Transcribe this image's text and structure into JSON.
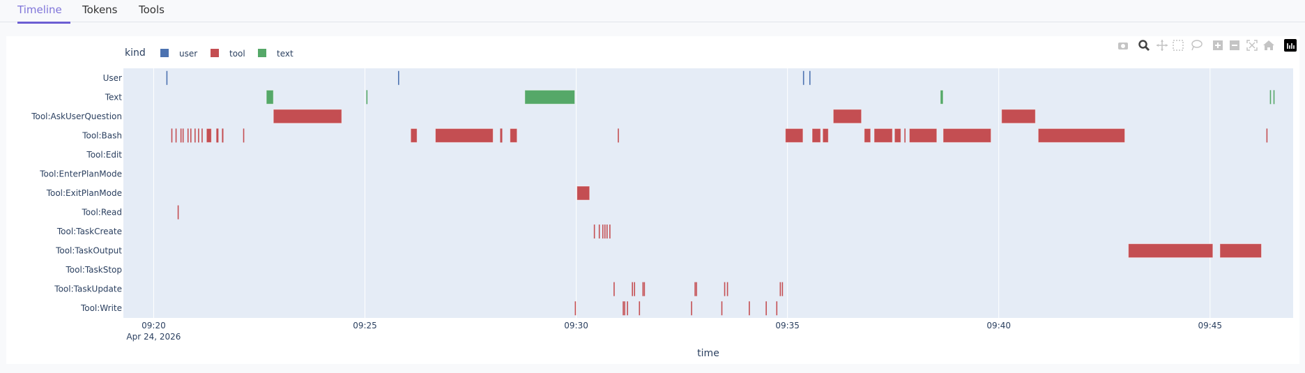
{
  "tabs": [
    {
      "label": "Timeline",
      "active": true
    },
    {
      "label": "Tokens",
      "active": false
    },
    {
      "label": "Tools",
      "active": false
    }
  ],
  "modebar": [
    "camera-icon",
    "zoom-icon",
    "pan-icon",
    "box-select-icon",
    "lasso-select-icon",
    "zoom-in-icon",
    "zoom-out-icon",
    "autoscale-icon",
    "reset-axes-icon",
    "plotly-logo-icon"
  ],
  "chart_data": {
    "type": "timeline",
    "xlabel": "time",
    "x_range": [
      "09:19:17",
      "09:46:58"
    ],
    "x_ticks": [
      "09:20",
      "09:25",
      "09:30",
      "09:35",
      "09:40",
      "09:45"
    ],
    "x_date_label": "Apr 24, 2026",
    "grid": true,
    "legend": {
      "title": "kind",
      "placement": "top-left",
      "items": [
        {
          "name": "user",
          "color": "#4c72b0"
        },
        {
          "name": "tool",
          "color": "#c44e52"
        },
        {
          "name": "text",
          "color": "#55a868"
        }
      ]
    },
    "rows": [
      "User",
      "Text",
      "Tool:AskUserQuestion",
      "Tool:Bash",
      "Tool:Edit",
      "Tool:EnterPlanMode",
      "Tool:ExitPlanMode",
      "Tool:Read",
      "Tool:TaskCreate",
      "Tool:TaskOutput",
      "Tool:TaskStop",
      "Tool:TaskUpdate",
      "Tool:Write"
    ],
    "segments": [
      {
        "row": "User",
        "kind": "user",
        "spans": [
          [
            "09:20:18",
            "09:20:19"
          ],
          [
            "09:25:47",
            "09:25:48"
          ],
          [
            "09:35:22",
            "09:35:23"
          ],
          [
            "09:35:31",
            "09:35:32"
          ]
        ]
      },
      {
        "row": "Text",
        "kind": "text",
        "spans": [
          [
            "09:22:40",
            "09:22:50"
          ],
          [
            "09:25:02",
            "09:25:03"
          ],
          [
            "09:28:47",
            "09:29:58"
          ],
          [
            "09:38:37",
            "09:38:41"
          ],
          [
            "09:46:25",
            "09:46:26"
          ],
          [
            "09:46:30",
            "09:46:31"
          ]
        ]
      },
      {
        "row": "Tool:AskUserQuestion",
        "kind": "tool",
        "spans": [
          [
            "09:22:50",
            "09:24:27"
          ],
          [
            "09:36:05",
            "09:36:45"
          ],
          [
            "09:40:04",
            "09:40:52"
          ]
        ]
      },
      {
        "row": "Tool:Bash",
        "kind": "tool",
        "spans": [
          [
            "09:20:25",
            "09:20:26"
          ],
          [
            "09:20:31",
            "09:20:32"
          ],
          [
            "09:20:38",
            "09:20:39"
          ],
          [
            "09:20:41",
            "09:20:42"
          ],
          [
            "09:20:48",
            "09:20:49"
          ],
          [
            "09:20:52",
            "09:20:53"
          ],
          [
            "09:20:58",
            "09:20:59"
          ],
          [
            "09:21:03",
            "09:21:04"
          ],
          [
            "09:21:08",
            "09:21:09"
          ],
          [
            "09:21:15",
            "09:21:22"
          ],
          [
            "09:21:29",
            "09:21:32"
          ],
          [
            "09:21:37",
            "09:21:39"
          ],
          [
            "09:22:07",
            "09:22:08"
          ],
          [
            "09:26:05",
            "09:26:14"
          ],
          [
            "09:26:40",
            "09:28:02"
          ],
          [
            "09:28:12",
            "09:28:15"
          ],
          [
            "09:28:26",
            "09:28:36"
          ],
          [
            "09:30:59",
            "09:31:00"
          ],
          [
            "09:34:57",
            "09:35:22"
          ],
          [
            "09:35:35",
            "09:35:47"
          ],
          [
            "09:35:50",
            "09:35:58"
          ],
          [
            "09:36:49",
            "09:36:58"
          ],
          [
            "09:37:03",
            "09:37:29"
          ],
          [
            "09:37:32",
            "09:37:41"
          ],
          [
            "09:37:46",
            "09:37:47"
          ],
          [
            "09:37:53",
            "09:38:32"
          ],
          [
            "09:38:41",
            "09:39:49"
          ],
          [
            "09:40:56",
            "09:42:59"
          ],
          [
            "09:46:20",
            "09:46:21"
          ]
        ]
      },
      {
        "row": "Tool:ExitPlanMode",
        "kind": "tool",
        "spans": [
          [
            "09:30:01",
            "09:30:19"
          ]
        ]
      },
      {
        "row": "Tool:Read",
        "kind": "tool",
        "spans": [
          [
            "09:20:34",
            "09:20:35"
          ]
        ]
      },
      {
        "row": "Tool:TaskCreate",
        "kind": "tool",
        "spans": [
          [
            "09:30:25",
            "09:30:26"
          ],
          [
            "09:30:32",
            "09:30:33"
          ],
          [
            "09:30:37",
            "09:30:38"
          ],
          [
            "09:30:40",
            "09:30:41"
          ],
          [
            "09:30:43",
            "09:30:44"
          ],
          [
            "09:30:47",
            "09:30:48"
          ]
        ]
      },
      {
        "row": "Tool:TaskOutput",
        "kind": "tool",
        "spans": [
          [
            "09:43:04",
            "09:45:04"
          ],
          [
            "09:45:14",
            "09:46:13"
          ]
        ]
      },
      {
        "row": "Tool:TaskUpdate",
        "kind": "tool",
        "spans": [
          [
            "09:30:53",
            "09:30:54"
          ],
          [
            "09:31:19",
            "09:31:20"
          ],
          [
            "09:31:22",
            "09:31:23"
          ],
          [
            "09:31:34",
            "09:31:35"
          ],
          [
            "09:31:36",
            "09:31:37"
          ],
          [
            "09:32:48",
            "09:32:49"
          ],
          [
            "09:32:50",
            "09:32:51"
          ],
          [
            "09:33:30",
            "09:33:31"
          ],
          [
            "09:33:34",
            "09:33:35"
          ],
          [
            "09:34:49",
            "09:34:50"
          ],
          [
            "09:34:52",
            "09:34:53"
          ]
        ]
      },
      {
        "row": "Tool:Write",
        "kind": "tool",
        "spans": [
          [
            "09:29:58",
            "09:29:59"
          ],
          [
            "09:31:06",
            "09:31:07"
          ],
          [
            "09:31:08",
            "09:31:09"
          ],
          [
            "09:31:12",
            "09:31:13"
          ],
          [
            "09:31:29",
            "09:31:30"
          ],
          [
            "09:32:43",
            "09:32:44"
          ],
          [
            "09:33:26",
            "09:33:27"
          ],
          [
            "09:34:05",
            "09:34:06"
          ],
          [
            "09:34:29",
            "09:34:30"
          ],
          [
            "09:34:44",
            "09:34:45"
          ]
        ]
      }
    ]
  }
}
